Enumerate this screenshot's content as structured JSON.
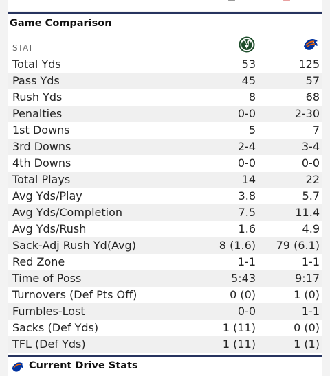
{
  "card": {
    "title": "Game Comparison",
    "stat_header": "STAT"
  },
  "teams": [
    {
      "icon": "ram-logo-icon",
      "color": "#1e4d2b"
    },
    {
      "icon": "bronco-logo-icon",
      "color": "#0033a0"
    }
  ],
  "rows": [
    {
      "stat": "Total Yds",
      "a": "53",
      "b": "125"
    },
    {
      "stat": "Pass Yds",
      "a": "45",
      "b": "57"
    },
    {
      "stat": "Rush Yds",
      "a": "8",
      "b": "68"
    },
    {
      "stat": "Penalties",
      "a": "0-0",
      "b": "2-30"
    },
    {
      "stat": "1st Downs",
      "a": "5",
      "b": "7"
    },
    {
      "stat": "3rd Downs",
      "a": "2-4",
      "b": "3-4"
    },
    {
      "stat": "4th Downs",
      "a": "0-0",
      "b": "0-0"
    },
    {
      "stat": "Total Plays",
      "a": "14",
      "b": "22"
    },
    {
      "stat": "Avg Yds/Play",
      "a": "3.8",
      "b": "5.7"
    },
    {
      "stat": "Avg Yds/Completion",
      "a": "7.5",
      "b": "11.4"
    },
    {
      "stat": "Avg Yds/Rush",
      "a": "1.6",
      "b": "4.9"
    },
    {
      "stat": "Sack-Adj Rush Yd(Avg)",
      "a": "8 (1.6)",
      "b": "79 (6.1)"
    },
    {
      "stat": "Red Zone",
      "a": "1-1",
      "b": "1-1"
    },
    {
      "stat": "Time of Poss",
      "a": "5:43",
      "b": "9:17"
    },
    {
      "stat": "Turnovers (Def Pts Off)",
      "a": "0 (0)",
      "b": "1 (0)"
    },
    {
      "stat": "Fumbles-Lost",
      "a": "0-0",
      "b": "1-1"
    },
    {
      "stat": "Sacks (Def Yds)",
      "a": "1 (11)",
      "b": "0 (0)"
    },
    {
      "stat": "TFL (Def Yds)",
      "a": "1 (11)",
      "b": "1 (1)"
    }
  ],
  "next_card": {
    "title": "Current Drive Stats"
  },
  "colors": {
    "accent": "#27345f",
    "row_alt": "#f0f0f0"
  }
}
